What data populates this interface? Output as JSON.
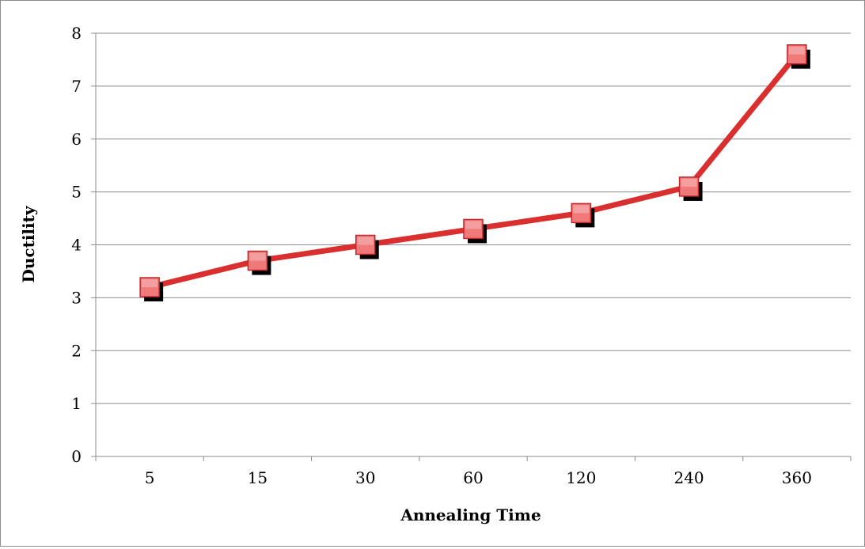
{
  "chart_data": {
    "type": "line",
    "title": "",
    "xlabel": "Annealing Time",
    "ylabel": "Ductility",
    "categories": [
      "5",
      "15",
      "30",
      "60",
      "120",
      "240",
      "360"
    ],
    "series": [
      {
        "values": [
          3.2,
          3.7,
          4.0,
          4.3,
          4.6,
          5.1,
          7.6
        ]
      }
    ],
    "ylim": [
      0,
      8
    ],
    "yticks": [
      "0",
      "1",
      "2",
      "3",
      "4",
      "5",
      "6",
      "7",
      "8"
    ],
    "grid": true,
    "legend": "none",
    "marker": "square-shadow",
    "colors": {
      "line": "#d92f2f",
      "marker_fill": "#f07a7a",
      "marker_edge": "#c0282d",
      "marker_shadow": "#000000",
      "grid": "#8c8c8c",
      "axis": "#8c8c8c"
    }
  }
}
